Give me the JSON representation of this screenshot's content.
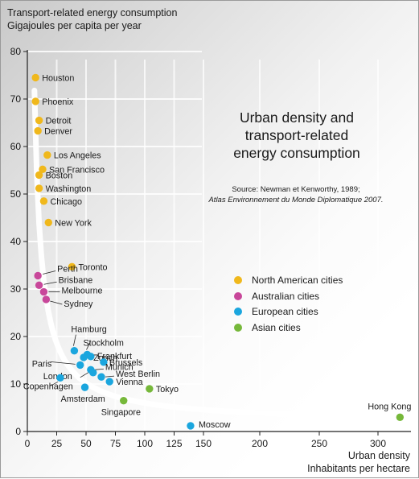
{
  "colors": {
    "north_america": "#f0b81c",
    "australia": "#c8479a",
    "europe": "#1ba6de",
    "asia": "#76b83a"
  },
  "chart_data": {
    "type": "scatter",
    "title": "Urban density and transport-related energy consumption",
    "title_lines": [
      "Urban density and",
      "transport-related",
      "energy consumption"
    ],
    "source_line1": "Source: Newman et Kenworthy, 1989;",
    "source_line2": "Atlas Environnement du Monde Diplomatique 2007.",
    "ylabel_lines": [
      "Transport-related energy consumption",
      "Gigajoules per capita per year"
    ],
    "xlabel_lines": [
      "Urban density",
      "Inhabitants per hectare"
    ],
    "xlim": [
      0,
      330
    ],
    "ylim": [
      0,
      80
    ],
    "x_ticks": [
      0,
      25,
      50,
      75,
      100,
      125,
      150,
      200,
      250,
      300
    ],
    "y_ticks": [
      0,
      10,
      20,
      30,
      40,
      50,
      60,
      70,
      80
    ],
    "grid": true,
    "legend_placement": "center-right",
    "legend": [
      {
        "label": "North American cities",
        "color": "north_america"
      },
      {
        "label": "Australian cities",
        "color": "australia"
      },
      {
        "label": "European cities",
        "color": "europe"
      },
      {
        "label": "Asian cities",
        "color": "asia"
      }
    ],
    "series": [
      {
        "group": "north_america",
        "points": [
          {
            "label": "Houston",
            "x": 7,
            "y": 74.5
          },
          {
            "label": "Phoenix",
            "x": 7,
            "y": 69.5
          },
          {
            "label": "Detroit",
            "x": 10,
            "y": 65.5
          },
          {
            "label": "Denver",
            "x": 9,
            "y": 63.3
          },
          {
            "label": "Los Angeles",
            "x": 17,
            "y": 58.2
          },
          {
            "label": "San Francisco",
            "x": 13,
            "y": 55.2
          },
          {
            "label": "Boston",
            "x": 10,
            "y": 54
          },
          {
            "label": "Washington",
            "x": 10,
            "y": 51.2
          },
          {
            "label": "Chicago",
            "x": 14,
            "y": 48.5
          },
          {
            "label": "New York",
            "x": 18,
            "y": 44
          },
          {
            "label": "Toronto",
            "x": 38,
            "y": 34.7
          }
        ]
      },
      {
        "group": "australia",
        "points": [
          {
            "label": "Perth",
            "x": 9,
            "y": 32.8
          },
          {
            "label": "Brisbane",
            "x": 10,
            "y": 30.8
          },
          {
            "label": "Melbourne",
            "x": 14,
            "y": 29.4
          },
          {
            "label": "Sydney",
            "x": 16,
            "y": 27.8
          }
        ]
      },
      {
        "group": "europe",
        "points": [
          {
            "label": "Hamburg",
            "x": 40,
            "y": 17
          },
          {
            "label": "Stockholm",
            "x": 51,
            "y": 16.2
          },
          {
            "label": "Frankfurt",
            "x": 54,
            "y": 15.8
          },
          {
            "label": "Zurich",
            "x": 48,
            "y": 15.6
          },
          {
            "label": "Brussels",
            "x": 65,
            "y": 14.6
          },
          {
            "label": "Paris",
            "x": 45,
            "y": 14
          },
          {
            "label": "Munich",
            "x": 54,
            "y": 13
          },
          {
            "label": "London",
            "x": 56,
            "y": 12.4
          },
          {
            "label": "West Berlin",
            "x": 63,
            "y": 11.5
          },
          {
            "label": "Copenhagen",
            "x": 28,
            "y": 11.3
          },
          {
            "label": "Vienna",
            "x": 70,
            "y": 10.5
          },
          {
            "label": "Amsterdam",
            "x": 49,
            "y": 9.3
          },
          {
            "label": "Moscow",
            "x": 139,
            "y": 1.2
          }
        ]
      },
      {
        "group": "asia",
        "points": [
          {
            "label": "Tokyo",
            "x": 104,
            "y": 9
          },
          {
            "label": "Singapore",
            "x": 82,
            "y": 6.5
          },
          {
            "label": "Hong Kong",
            "x": 320,
            "y": 3
          }
        ]
      }
    ]
  }
}
